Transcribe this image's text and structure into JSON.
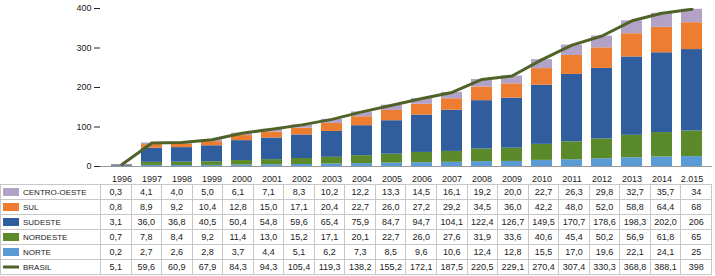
{
  "chart_data": {
    "type": "bar",
    "stacked": true,
    "categories": [
      "1996",
      "1997",
      "1998",
      "1999",
      "2000",
      "2001",
      "2002",
      "2003",
      "2004",
      "2005",
      "2006",
      "2007",
      "2008",
      "2009",
      "2010",
      "2011",
      "2012",
      "2013",
      "2014",
      "2.015"
    ],
    "ylim": [
      0,
      400
    ],
    "yticks": [
      0,
      100,
      200,
      300,
      400
    ],
    "grid": false,
    "series": [
      {
        "name": "CENTRO-OESTE",
        "color": "#b3a2c7",
        "values": [
          0.3,
          4.1,
          4.0,
          5.0,
          6.1,
          7.1,
          8.3,
          10.2,
          12.2,
          13.3,
          14.5,
          16.1,
          19.2,
          20.0,
          22.7,
          26.3,
          29.8,
          32.7,
          35.7,
          34
        ],
        "value_labels": [
          "0,3",
          "4,1",
          "4,0",
          "5,0",
          "6,1",
          "7,1",
          "8,3",
          "10,2",
          "12,2",
          "13,3",
          "14,5",
          "16,1",
          "19,2",
          "20,0",
          "22,7",
          "26,3",
          "29,8",
          "32,7",
          "35,7",
          "34"
        ]
      },
      {
        "name": "SUL",
        "color": "#ed7d31",
        "values": [
          0.8,
          8.9,
          9.2,
          10.4,
          12.8,
          15.0,
          17.1,
          20.4,
          22.7,
          26.0,
          27.2,
          29.2,
          34.5,
          36.0,
          42.2,
          48.0,
          52.0,
          58.8,
          64.4,
          68
        ],
        "value_labels": [
          "0,8",
          "8,9",
          "9,2",
          "10,4",
          "12,8",
          "15,0",
          "17,1",
          "20,4",
          "22,7",
          "26,0",
          "27,2",
          "29,2",
          "34,5",
          "36,0",
          "42,2",
          "48,0",
          "52,0",
          "58,8",
          "64,4",
          "68"
        ]
      },
      {
        "name": "SUDESTE",
        "color": "#2f5d9e",
        "values": [
          3.1,
          36.0,
          36.8,
          40.5,
          50.4,
          54.8,
          59.6,
          65.4,
          75.9,
          84.7,
          94.7,
          104.1,
          122.4,
          126.7,
          149.5,
          170.7,
          178.6,
          198.3,
          202.0,
          206
        ],
        "value_labels": [
          "3,1",
          "36,0",
          "36,8",
          "40,5",
          "50,4",
          "54,8",
          "59,6",
          "65,4",
          "75,9",
          "84,7",
          "94,7",
          "104,1",
          "122,4",
          "126,7",
          "149,5",
          "170,7",
          "178,6",
          "198,3",
          "202,0",
          "206"
        ]
      },
      {
        "name": "NORDESTE",
        "color": "#5a8a2a",
        "values": [
          0.7,
          7.8,
          8.4,
          9.2,
          11.4,
          13.0,
          15.2,
          17.1,
          20.1,
          22.7,
          26.0,
          27.6,
          31.9,
          33.6,
          40.6,
          45.4,
          50.2,
          56.9,
          61.8,
          65
        ],
        "value_labels": [
          "0,7",
          "7,8",
          "8,4",
          "9,2",
          "11,4",
          "13,0",
          "15,2",
          "17,1",
          "20,1",
          "22,7",
          "26,0",
          "27,6",
          "31,9",
          "33,6",
          "40,6",
          "45,4",
          "50,2",
          "56,9",
          "61,8",
          "65"
        ]
      },
      {
        "name": "NORTE",
        "color": "#5b9bd5",
        "values": [
          0.2,
          2.7,
          2.6,
          2.8,
          3.7,
          4.4,
          5.1,
          6.2,
          7.3,
          8.5,
          9.6,
          10.6,
          12.4,
          12.8,
          15.5,
          17.0,
          19.6,
          22.1,
          24.1,
          25
        ],
        "value_labels": [
          "0,2",
          "2,7",
          "2,6",
          "2,8",
          "3,7",
          "4,4",
          "5,1",
          "6,2",
          "7,3",
          "8,5",
          "9,6",
          "10,6",
          "12,4",
          "12,8",
          "15,5",
          "17,0",
          "19,6",
          "22,1",
          "24,1",
          "25"
        ]
      },
      {
        "name": "BRASIL",
        "color": "#4f6228",
        "type": "line",
        "values": [
          5.1,
          59.6,
          60.9,
          67.9,
          84.3,
          94.3,
          105.4,
          119.3,
          138.2,
          155.2,
          172.1,
          187.5,
          220.5,
          229.1,
          270.4,
          307.4,
          330.3,
          368.8,
          388.1,
          398
        ],
        "value_labels": [
          "5,1",
          "59,6",
          "60,9",
          "67,9",
          "84,3",
          "94,3",
          "105,4",
          "119,3",
          "138,2",
          "155,2",
          "172,1",
          "187,5",
          "220,5",
          "229,1",
          "270,4",
          "307,4",
          "330,3",
          "368,8",
          "388,1",
          "398"
        ]
      }
    ]
  }
}
